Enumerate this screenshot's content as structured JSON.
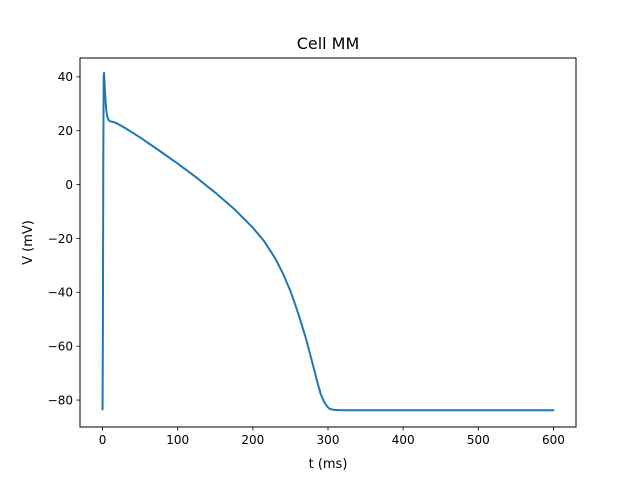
{
  "chart_data": {
    "type": "line",
    "title": "Cell MM",
    "xlabel": "t (ms)",
    "ylabel": "V (mV)",
    "xlim": [
      -30,
      630
    ],
    "ylim": [
      -90,
      47
    ],
    "xticks": [
      0,
      100,
      200,
      300,
      400,
      500,
      600
    ],
    "yticks": [
      -80,
      -60,
      -40,
      -20,
      0,
      20,
      40
    ],
    "grid": false,
    "line_color": "#1f77b4",
    "series": [
      {
        "x": [
          0,
          0.5,
          1,
          1.5,
          2,
          3,
          4,
          5,
          6,
          8,
          10,
          15,
          20,
          30,
          50,
          75,
          100,
          125,
          150,
          175,
          200,
          215,
          230,
          240,
          250,
          260,
          270,
          280,
          285,
          290,
          295,
          298,
          300,
          302,
          305,
          310,
          320,
          350,
          400,
          500,
          600
        ],
        "y": [
          -83.5,
          -50,
          10,
          40,
          41.5,
          36,
          31,
          27.5,
          25.5,
          24,
          23.5,
          23.2,
          22.6,
          21,
          17.5,
          12.7,
          7.8,
          2.6,
          -3,
          -9,
          -16,
          -21,
          -27.5,
          -33,
          -39.5,
          -47.5,
          -56.5,
          -67,
          -72.5,
          -77.5,
          -80.8,
          -82,
          -82.7,
          -83.2,
          -83.5,
          -83.7,
          -83.8,
          -83.8,
          -83.8,
          -83.8,
          -83.8
        ]
      }
    ]
  }
}
